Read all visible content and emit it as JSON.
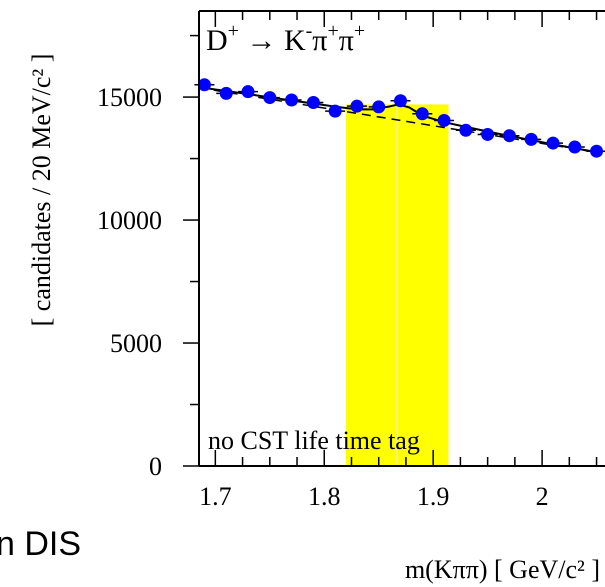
{
  "chart_data": {
    "type": "scatter",
    "title_parts": {
      "d": "D",
      "d_charge": "+",
      "arrow": " → ",
      "k": "K",
      "k_charge": "-",
      "pi1": "π",
      "pi1_charge": "+",
      "pi2": "π",
      "pi2_charge": "+"
    },
    "xlabel": "m(Kππ)  [ GeV/c² ]",
    "ylabel": "[ candidates / 20 MeV/c² ]",
    "annotation": "no CST life time tag",
    "xlim": [
      1.685,
      2.055
    ],
    "ylim": [
      0,
      18500
    ],
    "x_ticks": [
      1.7,
      1.8,
      1.9,
      2.0
    ],
    "x_tick_labels": [
      "1.7",
      "1.8",
      "1.9",
      "2"
    ],
    "y_ticks": [
      0,
      5000,
      10000,
      15000
    ],
    "y_tick_labels": [
      "0",
      "5000",
      "10000",
      "15000"
    ],
    "highlight_band": {
      "x_from": 1.82,
      "x_to": 1.914,
      "color": "#ffff00"
    },
    "series": [
      {
        "kind": "points",
        "color": "#0000ff",
        "x": [
          1.69,
          1.71,
          1.73,
          1.75,
          1.77,
          1.79,
          1.81,
          1.83,
          1.85,
          1.87,
          1.89,
          1.91,
          1.93,
          1.95,
          1.97,
          1.99,
          2.01,
          2.03,
          2.05
        ],
        "y": [
          15500,
          15150,
          15220,
          14980,
          14880,
          14780,
          14430,
          14630,
          14600,
          14850,
          14320,
          14050,
          13650,
          13480,
          13430,
          13280,
          13130,
          12970,
          12800
        ]
      },
      {
        "kind": "fit",
        "color": "#000000",
        "x": [
          1.685,
          1.71,
          1.73,
          1.75,
          1.77,
          1.79,
          1.81,
          1.83,
          1.845,
          1.86,
          1.868,
          1.878,
          1.89,
          1.91,
          1.93,
          1.95,
          1.97,
          1.99,
          2.01,
          2.03,
          2.055
        ],
        "y": [
          15400,
          15250,
          15120,
          14990,
          14860,
          14740,
          14610,
          14500,
          14500,
          14620,
          14700,
          14580,
          14250,
          13980,
          13790,
          13600,
          13420,
          13250,
          13080,
          12920,
          12720
        ]
      },
      {
        "kind": "background",
        "color": "#000000",
        "dashed": true,
        "x": [
          1.685,
          2.055
        ],
        "y": [
          15380,
          12720
        ]
      }
    ]
  },
  "stray_text": "n DIS"
}
